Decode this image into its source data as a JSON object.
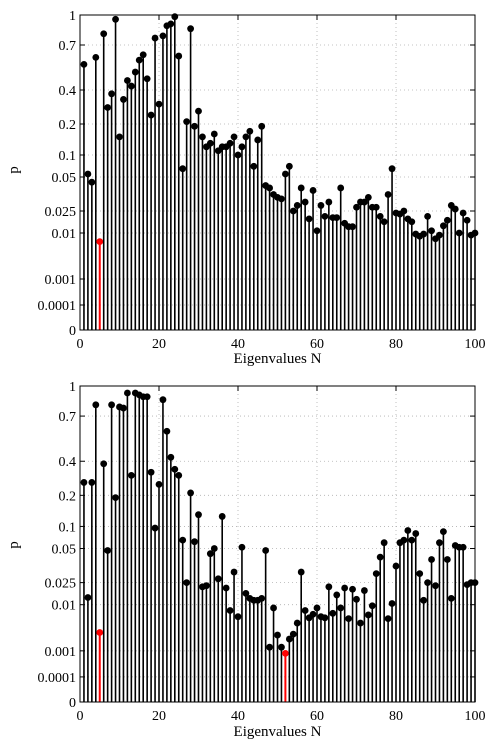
{
  "chart_data": [
    {
      "type": "stem",
      "xlabel": "Eigenvalues N",
      "ylabel": "p",
      "xlim": [
        0,
        100
      ],
      "x_ticks": [
        0,
        20,
        40,
        60,
        80,
        100
      ],
      "y_scale": "custom-nonlinear",
      "y_ticks": [
        {
          "value": 0,
          "label": "0"
        },
        {
          "value": 0.0001,
          "label": "0.0001"
        },
        {
          "value": 0.001,
          "label": "0.001"
        },
        {
          "value": 0.01,
          "label": "0.01"
        },
        {
          "value": 0.025,
          "label": "0.025"
        },
        {
          "value": 0.05,
          "label": "0.05"
        },
        {
          "value": 0.1,
          "label": "0.1"
        },
        {
          "value": 0.2,
          "label": "0.2"
        },
        {
          "value": 0.4,
          "label": "0.4"
        },
        {
          "value": 0.7,
          "label": "0.7"
        },
        {
          "value": 1,
          "label": "1"
        }
      ],
      "grid": true,
      "stem_color": "#000000",
      "highlight_color": "#ff0000",
      "highlighted_x": [
        5
      ],
      "x": [
        1,
        2,
        3,
        4,
        5,
        6,
        7,
        8,
        9,
        10,
        11,
        12,
        13,
        14,
        15,
        16,
        17,
        18,
        19,
        20,
        21,
        22,
        23,
        24,
        25,
        26,
        27,
        28,
        29,
        30,
        31,
        32,
        33,
        34,
        35,
        36,
        37,
        38,
        39,
        40,
        41,
        42,
        43,
        44,
        45,
        46,
        47,
        48,
        49,
        50,
        51,
        52,
        53,
        54,
        55,
        56,
        57,
        58,
        59,
        60,
        61,
        62,
        63,
        64,
        65,
        66,
        67,
        68,
        69,
        70,
        71,
        72,
        73,
        74,
        75,
        76,
        77,
        78,
        79,
        80,
        81,
        82,
        83,
        84,
        85,
        86,
        87,
        88,
        89,
        90,
        91,
        92,
        93,
        94,
        95,
        96,
        97,
        98,
        99,
        100
      ],
      "y": [
        0.55,
        0.055,
        0.045,
        0.6,
        0.0065,
        0.8,
        0.28,
        0.37,
        0.95,
        0.15,
        0.33,
        0.45,
        0.42,
        0.5,
        0.58,
        0.62,
        0.46,
        0.24,
        0.76,
        0.3,
        0.78,
        0.88,
        0.9,
        0.98,
        0.61,
        0.065,
        0.21,
        0.85,
        0.19,
        0.26,
        0.15,
        0.12,
        0.13,
        0.16,
        0.11,
        0.12,
        0.12,
        0.13,
        0.15,
        0.1,
        0.12,
        0.15,
        0.17,
        0.07,
        0.14,
        0.19,
        0.042,
        0.04,
        0.035,
        0.033,
        0.032,
        0.055,
        0.07,
        0.025,
        0.028,
        0.04,
        0.03,
        0.018,
        0.038,
        0.011,
        0.028,
        0.02,
        0.03,
        0.019,
        0.019,
        0.04,
        0.015,
        0.013,
        0.013,
        0.027,
        0.03,
        0.03,
        0.033,
        0.027,
        0.027,
        0.02,
        0.016,
        0.035,
        0.065,
        0.023,
        0.022,
        0.025,
        0.018,
        0.016,
        0.0095,
        0.0085,
        0.0095,
        0.02,
        0.011,
        0.0075,
        0.009,
        0.0135,
        0.017,
        0.028,
        0.026,
        0.01,
        0.023,
        0.017,
        0.009,
        0.01
      ]
    },
    {
      "type": "stem",
      "xlabel": "Eigenvalues N",
      "ylabel": "p",
      "xlim": [
        0,
        100
      ],
      "x_ticks": [
        0,
        20,
        40,
        60,
        80,
        100
      ],
      "y_scale": "custom-nonlinear",
      "y_ticks": [
        {
          "value": 0,
          "label": "0"
        },
        {
          "value": 0.0001,
          "label": "0.0001"
        },
        {
          "value": 0.001,
          "label": "0.001"
        },
        {
          "value": 0.01,
          "label": "0.01"
        },
        {
          "value": 0.025,
          "label": "0.025"
        },
        {
          "value": 0.05,
          "label": "0.05"
        },
        {
          "value": 0.1,
          "label": "0.1"
        },
        {
          "value": 0.2,
          "label": "0.2"
        },
        {
          "value": 0.4,
          "label": "0.4"
        },
        {
          "value": 0.7,
          "label": "0.7"
        },
        {
          "value": 1,
          "label": "1"
        }
      ],
      "grid": true,
      "stem_color": "#000000",
      "highlight_color": "#ff0000",
      "highlighted_x": [
        5,
        52
      ],
      "x": [
        1,
        2,
        3,
        4,
        5,
        6,
        7,
        8,
        9,
        10,
        11,
        12,
        13,
        14,
        15,
        16,
        17,
        18,
        19,
        20,
        21,
        22,
        23,
        24,
        25,
        26,
        27,
        28,
        29,
        30,
        31,
        32,
        33,
        34,
        35,
        36,
        37,
        38,
        39,
        40,
        41,
        42,
        43,
        44,
        45,
        46,
        47,
        48,
        49,
        50,
        51,
        52,
        53,
        54,
        55,
        56,
        57,
        58,
        59,
        60,
        61,
        62,
        63,
        64,
        65,
        66,
        67,
        68,
        69,
        70,
        71,
        72,
        73,
        74,
        75,
        76,
        77,
        78,
        79,
        80,
        81,
        82,
        83,
        84,
        85,
        86,
        87,
        88,
        89,
        90,
        91,
        92,
        93,
        94,
        95,
        96,
        97,
        98,
        99,
        100
      ],
      "y": [
        0.26,
        0.0135,
        0.26,
        0.8,
        0.0025,
        0.38,
        0.048,
        0.8,
        0.19,
        0.78,
        0.77,
        0.92,
        0.3,
        0.92,
        0.9,
        0.88,
        0.88,
        0.32,
        0.095,
        0.25,
        0.85,
        0.58,
        0.42,
        0.34,
        0.3,
        0.065,
        0.025,
        0.21,
        0.062,
        0.13,
        0.021,
        0.022,
        0.045,
        0.05,
        0.027,
        0.125,
        0.02,
        0.0075,
        0.031,
        0.0055,
        0.052,
        0.016,
        0.013,
        0.012,
        0.012,
        0.013,
        0.048,
        0.0012,
        0.0085,
        0.0022,
        0.0012,
        0.0008,
        0.0018,
        0.0023,
        0.004,
        0.031,
        0.0075,
        0.0052,
        0.0062,
        0.0085,
        0.0055,
        0.0052,
        0.021,
        0.0065,
        0.015,
        0.0085,
        0.02,
        0.005,
        0.019,
        0.0125,
        0.004,
        0.018,
        0.006,
        0.0095,
        0.03,
        0.042,
        0.06,
        0.005,
        0.0105,
        0.035,
        0.06,
        0.065,
        0.088,
        0.065,
        0.08,
        0.03,
        0.012,
        0.025,
        0.04,
        0.022,
        0.06,
        0.085,
        0.04,
        0.013,
        0.055,
        0.052,
        0.052,
        0.023,
        0.025,
        0.025
      ]
    }
  ]
}
